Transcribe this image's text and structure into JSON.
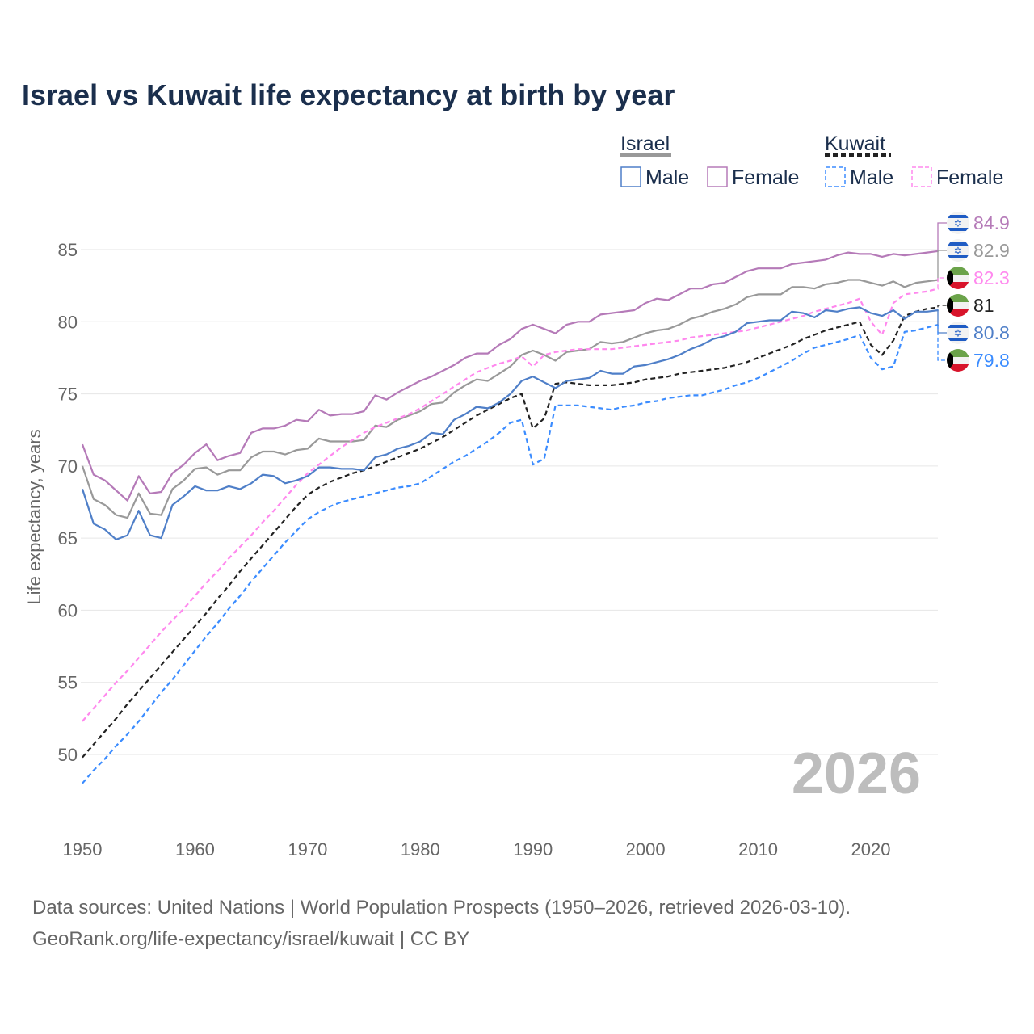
{
  "chart_data": {
    "type": "line",
    "title": "Israel vs Kuwait life expectancy at birth by year",
    "xlabel": "",
    "ylabel": "Life expectancy, years",
    "xlim": [
      1950,
      2026
    ],
    "ylim": [
      46,
      87
    ],
    "x_ticks": [
      "1950",
      "1960",
      "1970",
      "1980",
      "1990",
      "2000",
      "2010",
      "2020"
    ],
    "y_ticks": [
      "50",
      "55",
      "60",
      "65",
      "70",
      "75",
      "80",
      "85"
    ],
    "year_watermark": "2026",
    "legend": {
      "groups": [
        {
          "name": "Israel",
          "items": [
            "Male",
            "Female"
          ]
        },
        {
          "name": "Kuwait",
          "items": [
            "Male",
            "Female"
          ]
        }
      ],
      "placement": "top-right"
    },
    "series": [
      {
        "name": "Israel Female",
        "country": "Israel",
        "color": "#b57ab8",
        "dashed": false,
        "end_label": "84.9",
        "start_year": 1950,
        "values": [
          71.5,
          69.4,
          69.0,
          68.3,
          67.6,
          69.3,
          68.1,
          68.2,
          69.5,
          70.1,
          70.9,
          71.5,
          70.4,
          70.7,
          70.9,
          72.3,
          72.6,
          72.6,
          72.8,
          73.2,
          73.1,
          73.9,
          73.5,
          73.6,
          73.6,
          73.8,
          74.9,
          74.6,
          75.1,
          75.5,
          75.9,
          76.2,
          76.6,
          77.0,
          77.5,
          77.8,
          77.8,
          78.4,
          78.8,
          79.5,
          79.8,
          79.5,
          79.2,
          79.8,
          80.0,
          80.0,
          80.5,
          80.6,
          80.7,
          80.8,
          81.3,
          81.6,
          81.5,
          81.9,
          82.3,
          82.3,
          82.6,
          82.7,
          83.1,
          83.5,
          83.7,
          83.7,
          83.7,
          84.0,
          84.1,
          84.2,
          84.3,
          84.6,
          84.8,
          84.7,
          84.7,
          84.5,
          84.7,
          84.6,
          84.7,
          84.8,
          84.9
        ]
      },
      {
        "name": "Israel",
        "country": "Israel",
        "color": "#999999",
        "dashed": false,
        "end_label": "82.9",
        "start_year": 1950,
        "values": [
          70.0,
          67.7,
          67.3,
          66.6,
          66.4,
          68.1,
          66.7,
          66.6,
          68.4,
          69.0,
          69.8,
          69.9,
          69.4,
          69.7,
          69.7,
          70.6,
          71.0,
          71.0,
          70.8,
          71.1,
          71.2,
          71.9,
          71.7,
          71.7,
          71.7,
          71.8,
          72.8,
          72.7,
          73.2,
          73.5,
          73.8,
          74.3,
          74.4,
          75.1,
          75.6,
          76.0,
          75.9,
          76.4,
          76.9,
          77.7,
          78.0,
          77.7,
          77.3,
          77.9,
          78.0,
          78.1,
          78.6,
          78.5,
          78.6,
          78.9,
          79.2,
          79.4,
          79.5,
          79.8,
          80.2,
          80.4,
          80.7,
          80.9,
          81.2,
          81.7,
          81.9,
          81.9,
          81.9,
          82.4,
          82.4,
          82.3,
          82.6,
          82.7,
          82.9,
          82.9,
          82.7,
          82.5,
          82.8,
          82.4,
          82.7,
          82.8,
          82.9
        ]
      },
      {
        "name": "Kuwait Female",
        "country": "Kuwait",
        "color": "#ff88ee",
        "dashed": true,
        "end_label": "82.3",
        "start_year": 1950,
        "values": [
          52.3,
          53.2,
          54.1,
          55.0,
          55.8,
          56.7,
          57.6,
          58.5,
          59.3,
          60.1,
          61.0,
          61.9,
          62.7,
          63.6,
          64.4,
          65.2,
          66.1,
          66.9,
          67.8,
          68.7,
          69.5,
          70.1,
          70.7,
          71.3,
          71.8,
          72.3,
          72.7,
          73.0,
          73.3,
          73.6,
          74.0,
          74.5,
          75.0,
          75.5,
          76.0,
          76.5,
          76.8,
          77.1,
          77.3,
          77.6,
          76.9,
          77.7,
          77.9,
          78.0,
          78.1,
          78.1,
          78.1,
          78.1,
          78.2,
          78.3,
          78.4,
          78.5,
          78.6,
          78.7,
          78.9,
          79.0,
          79.1,
          79.2,
          79.3,
          79.4,
          79.6,
          79.8,
          80.0,
          80.2,
          80.4,
          80.7,
          80.9,
          81.1,
          81.3,
          81.6,
          80.0,
          79.1,
          81.3,
          81.9,
          82.0,
          82.1,
          82.3
        ]
      },
      {
        "name": "Kuwait",
        "country": "Kuwait",
        "color": "#222222",
        "dashed": true,
        "end_label": "81",
        "start_year": 1950,
        "values": [
          49.8,
          50.7,
          51.6,
          52.5,
          53.5,
          54.4,
          55.3,
          56.2,
          57.1,
          58.0,
          58.9,
          59.8,
          60.8,
          61.7,
          62.7,
          63.6,
          64.5,
          65.4,
          66.3,
          67.2,
          68.0,
          68.5,
          68.9,
          69.2,
          69.5,
          69.7,
          70.0,
          70.3,
          70.6,
          70.9,
          71.2,
          71.6,
          72.0,
          72.5,
          73.0,
          73.5,
          73.9,
          74.3,
          74.7,
          75.0,
          72.6,
          73.3,
          75.7,
          75.8,
          75.7,
          75.6,
          75.6,
          75.6,
          75.7,
          75.8,
          76.0,
          76.1,
          76.2,
          76.4,
          76.5,
          76.6,
          76.7,
          76.8,
          77.0,
          77.2,
          77.5,
          77.8,
          78.1,
          78.4,
          78.8,
          79.1,
          79.4,
          79.6,
          79.8,
          80.0,
          78.4,
          77.7,
          78.7,
          80.4,
          80.7,
          80.9,
          81.0
        ]
      },
      {
        "name": "Israel Male",
        "country": "Israel",
        "color": "#4f7fc8",
        "dashed": false,
        "end_label": "80.8",
        "start_year": 1950,
        "values": [
          68.4,
          66.0,
          65.6,
          64.9,
          65.2,
          66.9,
          65.2,
          65.0,
          67.3,
          67.9,
          68.6,
          68.3,
          68.3,
          68.6,
          68.4,
          68.8,
          69.4,
          69.3,
          68.8,
          69.0,
          69.3,
          69.9,
          69.9,
          69.8,
          69.8,
          69.7,
          70.6,
          70.8,
          71.2,
          71.4,
          71.7,
          72.3,
          72.2,
          73.2,
          73.6,
          74.1,
          74.0,
          74.4,
          75.0,
          75.9,
          76.2,
          75.8,
          75.4,
          75.9,
          76.0,
          76.1,
          76.6,
          76.4,
          76.4,
          76.9,
          77.0,
          77.2,
          77.4,
          77.7,
          78.1,
          78.4,
          78.8,
          79.0,
          79.3,
          79.9,
          80.0,
          80.1,
          80.1,
          80.7,
          80.6,
          80.3,
          80.8,
          80.7,
          80.9,
          81.0,
          80.6,
          80.4,
          80.8,
          80.2,
          80.7,
          80.7,
          80.8
        ]
      },
      {
        "name": "Kuwait Male",
        "country": "Kuwait",
        "color": "#3b8cff",
        "dashed": true,
        "end_label": "79.8",
        "start_year": 1950,
        "values": [
          48.0,
          48.9,
          49.7,
          50.6,
          51.4,
          52.3,
          53.3,
          54.3,
          55.2,
          56.2,
          57.2,
          58.2,
          59.1,
          60.1,
          61.0,
          62.0,
          62.9,
          63.8,
          64.7,
          65.5,
          66.3,
          66.8,
          67.2,
          67.5,
          67.7,
          67.9,
          68.1,
          68.3,
          68.5,
          68.6,
          68.8,
          69.3,
          69.8,
          70.3,
          70.7,
          71.2,
          71.7,
          72.3,
          73.0,
          73.2,
          70.1,
          70.5,
          74.2,
          74.2,
          74.2,
          74.1,
          74.0,
          73.9,
          74.1,
          74.2,
          74.4,
          74.5,
          74.7,
          74.8,
          74.9,
          74.9,
          75.1,
          75.3,
          75.6,
          75.8,
          76.1,
          76.5,
          76.9,
          77.3,
          77.8,
          78.2,
          78.4,
          78.6,
          78.8,
          79.1,
          77.5,
          76.7,
          76.9,
          79.3,
          79.4,
          79.6,
          79.8
        ]
      }
    ]
  },
  "legend_labels": {
    "israel": "Israel",
    "kuwait": "Kuwait",
    "israel_male": "Male",
    "israel_female": "Female",
    "kuwait_male": "Male",
    "kuwait_female": "Female"
  },
  "footer": {
    "line1": "Data sources: United Nations | World Population Prospects (1950–2026, retrieved 2026-03-10).",
    "line2": "GeoRank.org/life-expectancy/israel/kuwait | CC BY"
  }
}
